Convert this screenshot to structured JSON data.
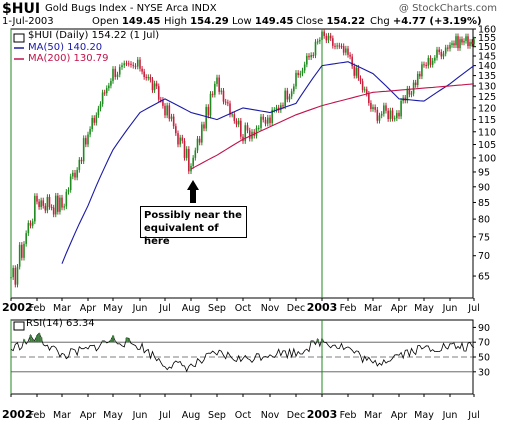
{
  "header": {
    "symbol": "$HUI",
    "name": "Gold Bugs Index - NYSE Arca  INDX",
    "watermark": "@ StockCharts.com"
  },
  "quote": {
    "date": "1-Jul-2003",
    "open_label": "Open",
    "open": "149.45",
    "high_label": "High",
    "high": "154.29",
    "low_label": "Low",
    "low": "149.45",
    "close_label": "Close",
    "close": "154.22",
    "chg_label": "Chg",
    "chg": "+4.77 (+3.19%)"
  },
  "price_legend": {
    "main": "$HUI (Daily) 154.22 (1 Jul)",
    "ma50": "MA(50) 140.20",
    "ma200": "MA(200) 130.79"
  },
  "rsi_legend": {
    "label": "RSI(14) 63.34"
  },
  "annotation": {
    "text": "Possibly near the equivalent of here"
  },
  "colors": {
    "ma50": "#1a1aa6",
    "ma200": "#c0134a",
    "up": "#1f8a1f",
    "down": "#c81e3c",
    "rsi_overbought": "#3c7a3c"
  },
  "chart_data": [
    {
      "type": "line",
      "title": "$HUI (Daily) 154.22 (1 Jul)",
      "x": [
        "2002-01",
        "2002-02",
        "2002-03",
        "2002-04",
        "2002-05",
        "2002-06",
        "2002-07",
        "2002-08",
        "2002-09",
        "2002-10",
        "2002-11",
        "2002-12",
        "2003-01",
        "2003-02",
        "2003-03",
        "2003-04",
        "2003-05",
        "2003-06",
        "2003-07"
      ],
      "series": [
        {
          "name": "$HUI",
          "values": [
            62,
            86,
            84,
            108,
            137,
            140,
            120,
            96,
            132,
            109,
            115,
            133,
            156,
            145,
            118,
            118,
            140,
            152,
            154
          ]
        },
        {
          "name": "MA(50)",
          "values": [
            null,
            null,
            68,
            84,
            103,
            118,
            124,
            118,
            115,
            120,
            118,
            122,
            140,
            142,
            136,
            124,
            123,
            131,
            140
          ]
        },
        {
          "name": "MA(200)",
          "values": [
            null,
            null,
            null,
            null,
            null,
            null,
            null,
            96,
            101,
            107,
            112,
            117,
            121,
            124,
            127,
            128,
            129,
            130,
            131
          ]
        }
      ],
      "xlabel": "",
      "ylabel": "",
      "ylim": [
        60,
        160
      ],
      "y_scale": "log",
      "y_ticks": [
        65,
        70,
        75,
        80,
        85,
        90,
        95,
        100,
        105,
        110,
        115,
        120,
        125,
        130,
        135,
        140,
        145,
        150,
        155,
        160
      ],
      "x_tick_labels": [
        "2002",
        "Feb",
        "Mar",
        "Apr",
        "May",
        "Jun",
        "Jul",
        "Aug",
        "Sep",
        "Oct",
        "Nov",
        "Dec",
        "2003",
        "Feb",
        "Mar",
        "Apr",
        "May",
        "Jun",
        "Jul"
      ],
      "grid": false,
      "legend_placement": "top-left"
    },
    {
      "type": "line",
      "title": "RSI(14) 63.34",
      "x": [
        "2002-01",
        "2002-02",
        "2002-03",
        "2002-04",
        "2002-05",
        "2002-06",
        "2002-07",
        "2002-08",
        "2002-09",
        "2002-10",
        "2002-11",
        "2002-12",
        "2003-01",
        "2003-02",
        "2003-03",
        "2003-04",
        "2003-05",
        "2003-06",
        "2003-07"
      ],
      "series": [
        {
          "name": "RSI(14)",
          "values": [
            60,
            78,
            52,
            60,
            74,
            65,
            40,
            37,
            55,
            46,
            55,
            56,
            72,
            62,
            40,
            54,
            62,
            64,
            63
          ]
        }
      ],
      "ylim": [
        0,
        100
      ],
      "y_ticks": [
        30,
        50,
        70,
        90
      ],
      "reference_lines": [
        30,
        50,
        70
      ],
      "x_tick_labels": [
        "2002",
        "Feb",
        "Mar",
        "Apr",
        "May",
        "Jun",
        "Jul",
        "Aug",
        "Sep",
        "Oct",
        "Nov",
        "Dec",
        "2003",
        "Feb",
        "Mar",
        "Apr",
        "May",
        "Jun",
        "Jul"
      ]
    }
  ]
}
